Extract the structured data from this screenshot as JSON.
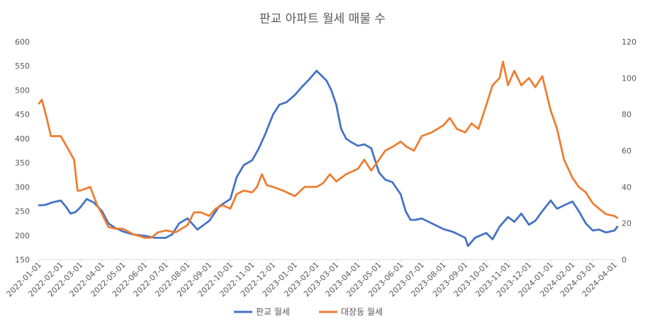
{
  "chart_data": {
    "type": "line",
    "title": "판교 아파트 월세 매물 수",
    "x_tick_labels": [
      "2022-01-01",
      "2022-02-01",
      "2022-03-01",
      "2022-04-01",
      "2022-05-01",
      "2022-06-01",
      "2022-07-01",
      "2022-08-01",
      "2022-09-01",
      "2022-10-01",
      "2022-11-01",
      "2022-12-01",
      "2023-01-01",
      "2023-02-01",
      "2023-03-01",
      "2023-04-01",
      "2023-05-01",
      "2023-06-01",
      "2023-07-01",
      "2023-08-01",
      "2023-09-01",
      "2023-10-01",
      "2023-11-01",
      "2023-12-01",
      "2024-01-01",
      "2024-02-01",
      "2024-03-01",
      "2024-04-01"
    ],
    "y_left": {
      "min": 150,
      "max": 600,
      "ticks": [
        150,
        200,
        250,
        300,
        350,
        400,
        450,
        500,
        550,
        600
      ]
    },
    "y_right": {
      "min": 0,
      "max": 120,
      "ticks": [
        0,
        20,
        40,
        60,
        80,
        100,
        120
      ]
    },
    "grid": false,
    "legend_position": "bottom",
    "series": [
      {
        "name": "판교 월세",
        "axis": "left",
        "color": "#4472C4",
        "points": [
          [
            "2022-01-01",
            262
          ],
          [
            "2022-01-10",
            263
          ],
          [
            "2022-01-20",
            268
          ],
          [
            "2022-02-01",
            272
          ],
          [
            "2022-02-08",
            260
          ],
          [
            "2022-02-15",
            245
          ],
          [
            "2022-02-22",
            248
          ],
          [
            "2022-03-01",
            258
          ],
          [
            "2022-03-10",
            275
          ],
          [
            "2022-03-20",
            268
          ],
          [
            "2022-04-01",
            250
          ],
          [
            "2022-04-10",
            225
          ],
          [
            "2022-04-20",
            215
          ],
          [
            "2022-05-01",
            208
          ],
          [
            "2022-05-15",
            202
          ],
          [
            "2022-06-01",
            199
          ],
          [
            "2022-06-15",
            195
          ],
          [
            "2022-07-01",
            195
          ],
          [
            "2022-07-10",
            202
          ],
          [
            "2022-07-20",
            225
          ],
          [
            "2022-08-01",
            235
          ],
          [
            "2022-08-15",
            212
          ],
          [
            "2022-09-01",
            230
          ],
          [
            "2022-09-15",
            260
          ],
          [
            "2022-10-01",
            275
          ],
          [
            "2022-10-10",
            320
          ],
          [
            "2022-10-20",
            345
          ],
          [
            "2022-11-01",
            355
          ],
          [
            "2022-11-10",
            378
          ],
          [
            "2022-11-20",
            410
          ],
          [
            "2022-12-01",
            450
          ],
          [
            "2022-12-10",
            470
          ],
          [
            "2022-12-20",
            475
          ],
          [
            "2023-01-01",
            490
          ],
          [
            "2023-01-10",
            505
          ],
          [
            "2023-01-20",
            520
          ],
          [
            "2023-02-01",
            540
          ],
          [
            "2023-02-08",
            530
          ],
          [
            "2023-02-15",
            520
          ],
          [
            "2023-02-22",
            500
          ],
          [
            "2023-03-01",
            470
          ],
          [
            "2023-03-08",
            420
          ],
          [
            "2023-03-15",
            400
          ],
          [
            "2023-03-22",
            393
          ],
          [
            "2023-04-01",
            385
          ],
          [
            "2023-04-10",
            388
          ],
          [
            "2023-04-20",
            380
          ],
          [
            "2023-05-01",
            330
          ],
          [
            "2023-05-10",
            315
          ],
          [
            "2023-05-20",
            310
          ],
          [
            "2023-06-01",
            285
          ],
          [
            "2023-06-08",
            250
          ],
          [
            "2023-06-15",
            232
          ],
          [
            "2023-06-22",
            232
          ],
          [
            "2023-07-01",
            235
          ],
          [
            "2023-07-15",
            225
          ],
          [
            "2023-08-01",
            213
          ],
          [
            "2023-08-15",
            207
          ],
          [
            "2023-09-01",
            195
          ],
          [
            "2023-09-05",
            178
          ],
          [
            "2023-09-15",
            195
          ],
          [
            "2023-10-01",
            205
          ],
          [
            "2023-10-10",
            192
          ],
          [
            "2023-10-20",
            218
          ],
          [
            "2023-11-01",
            238
          ],
          [
            "2023-11-10",
            228
          ],
          [
            "2023-11-20",
            245
          ],
          [
            "2023-12-01",
            222
          ],
          [
            "2023-12-10",
            230
          ],
          [
            "2023-12-20",
            250
          ],
          [
            "2024-01-01",
            272
          ],
          [
            "2024-01-10",
            255
          ],
          [
            "2024-01-20",
            262
          ],
          [
            "2024-02-01",
            270
          ],
          [
            "2024-02-10",
            250
          ],
          [
            "2024-02-20",
            225
          ],
          [
            "2024-03-01",
            210
          ],
          [
            "2024-03-10",
            212
          ],
          [
            "2024-03-20",
            206
          ],
          [
            "2024-04-01",
            210
          ],
          [
            "2024-04-05",
            218
          ]
        ]
      },
      {
        "name": "대장동 월세",
        "axis": "right",
        "color": "#ED7D31",
        "points": [
          [
            "2022-01-01",
            86
          ],
          [
            "2022-01-05",
            88
          ],
          [
            "2022-01-08",
            84
          ],
          [
            "2022-01-12",
            78
          ],
          [
            "2022-01-18",
            68
          ],
          [
            "2022-02-01",
            68
          ],
          [
            "2022-02-10",
            62
          ],
          [
            "2022-02-20",
            55
          ],
          [
            "2022-02-25",
            38
          ],
          [
            "2022-03-01",
            38
          ],
          [
            "2022-03-15",
            40
          ],
          [
            "2022-03-25",
            30
          ],
          [
            "2022-04-01",
            25
          ],
          [
            "2022-04-10",
            18
          ],
          [
            "2022-04-20",
            17
          ],
          [
            "2022-05-01",
            17
          ],
          [
            "2022-05-15",
            14
          ],
          [
            "2022-06-01",
            12
          ],
          [
            "2022-06-10",
            12
          ],
          [
            "2022-06-20",
            15
          ],
          [
            "2022-07-01",
            16
          ],
          [
            "2022-07-15",
            15
          ],
          [
            "2022-08-01",
            19
          ],
          [
            "2022-08-10",
            26
          ],
          [
            "2022-08-20",
            26
          ],
          [
            "2022-09-01",
            24
          ],
          [
            "2022-09-10",
            28
          ],
          [
            "2022-09-20",
            30
          ],
          [
            "2022-10-01",
            28
          ],
          [
            "2022-10-10",
            36
          ],
          [
            "2022-10-20",
            38
          ],
          [
            "2022-11-01",
            37
          ],
          [
            "2022-11-08",
            40
          ],
          [
            "2022-11-15",
            47
          ],
          [
            "2022-11-22",
            41
          ],
          [
            "2022-12-01",
            40
          ],
          [
            "2022-12-15",
            38
          ],
          [
            "2023-01-01",
            35
          ],
          [
            "2023-01-15",
            40
          ],
          [
            "2023-02-01",
            40
          ],
          [
            "2023-02-10",
            42
          ],
          [
            "2023-02-20",
            47
          ],
          [
            "2023-03-01",
            43
          ],
          [
            "2023-03-15",
            47
          ],
          [
            "2023-04-01",
            50
          ],
          [
            "2023-04-10",
            55
          ],
          [
            "2023-04-20",
            49
          ],
          [
            "2023-05-01",
            55
          ],
          [
            "2023-05-10",
            60
          ],
          [
            "2023-05-20",
            62
          ],
          [
            "2023-06-01",
            65
          ],
          [
            "2023-06-10",
            62
          ],
          [
            "2023-06-20",
            60
          ],
          [
            "2023-07-01",
            68
          ],
          [
            "2023-07-15",
            70
          ],
          [
            "2023-08-01",
            74
          ],
          [
            "2023-08-10",
            78
          ],
          [
            "2023-08-20",
            72
          ],
          [
            "2023-09-01",
            70
          ],
          [
            "2023-09-10",
            75
          ],
          [
            "2023-09-20",
            72
          ],
          [
            "2023-10-01",
            85
          ],
          [
            "2023-10-10",
            96
          ],
          [
            "2023-10-20",
            100
          ],
          [
            "2023-10-25",
            109
          ],
          [
            "2023-11-01",
            96
          ],
          [
            "2023-11-10",
            104
          ],
          [
            "2023-11-20",
            96
          ],
          [
            "2023-12-01",
            100
          ],
          [
            "2023-12-10",
            95
          ],
          [
            "2023-12-20",
            101
          ],
          [
            "2024-01-01",
            82
          ],
          [
            "2024-01-10",
            72
          ],
          [
            "2024-01-20",
            55
          ],
          [
            "2024-02-01",
            45
          ],
          [
            "2024-02-10",
            40
          ],
          [
            "2024-02-20",
            37
          ],
          [
            "2024-03-01",
            31
          ],
          [
            "2024-03-10",
            28
          ],
          [
            "2024-03-20",
            25
          ],
          [
            "2024-04-01",
            24
          ],
          [
            "2024-04-05",
            23
          ]
        ]
      }
    ]
  }
}
